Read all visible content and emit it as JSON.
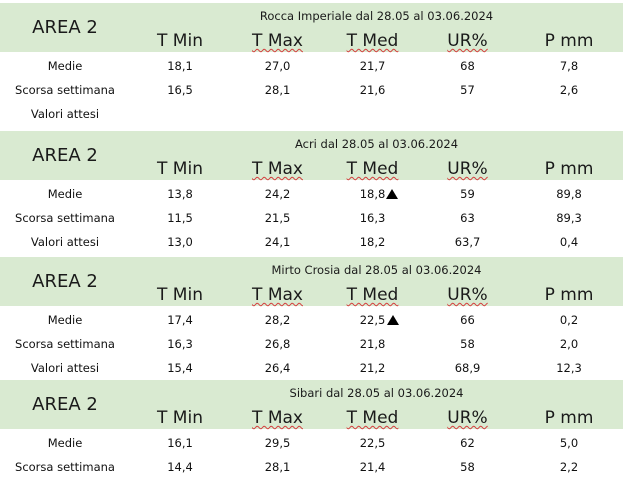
{
  "area_label": "AREA 2",
  "columns": [
    "T Min",
    "T Max",
    "T Med",
    "UR%",
    "P mm"
  ],
  "blocks": [
    {
      "title": "Rocca Imperiale  dal 28.05 al 03.06.2024",
      "rows": [
        {
          "label": "Medie",
          "values": [
            "18,1",
            "27,0",
            "21,7",
            "68",
            "7,8"
          ],
          "arrow": false
        },
        {
          "label": "Scorsa settimana",
          "values": [
            "16,5",
            "28,1",
            "21,6",
            "57",
            "2,6"
          ],
          "arrow": false
        },
        {
          "label": "Valori attesi",
          "values": [
            "",
            "",
            "",
            "",
            ""
          ],
          "arrow": false
        }
      ]
    },
    {
      "title": "Acri dal 28.05 al 03.06.2024",
      "rows": [
        {
          "label": "Medie",
          "values": [
            "13,8",
            "24,2",
            "18,8",
            "59",
            "89,8"
          ],
          "arrow": true
        },
        {
          "label": "Scorsa settimana",
          "values": [
            "11,5",
            "21,5",
            "16,3",
            "63",
            "89,3"
          ],
          "arrow": false
        },
        {
          "label": "Valori attesi",
          "values": [
            "13,0",
            "24,1",
            "18,2",
            "63,7",
            "0,4"
          ],
          "arrow": false
        }
      ]
    },
    {
      "title": "Mirto Crosia dal 28.05 al 03.06.2024",
      "rows": [
        {
          "label": "Medie",
          "values": [
            "17,4",
            "28,2",
            "22,5",
            "66",
            "0,2"
          ],
          "arrow": true
        },
        {
          "label": "Scorsa settimana",
          "values": [
            "16,3",
            "26,8",
            "21,8",
            "58",
            "2,0"
          ],
          "arrow": false
        },
        {
          "label": "Valori attesi",
          "values": [
            "15,4",
            "26,4",
            "21,2",
            "68,9",
            "12,3"
          ],
          "arrow": false
        }
      ]
    },
    {
      "title": "Sibari dal 28.05 al 03.06.2024",
      "rows": [
        {
          "label": "Medie",
          "values": [
            "16,1",
            "29,5",
            "22,5",
            "62",
            "5,0"
          ],
          "arrow": false
        },
        {
          "label": "Scorsa settimana",
          "values": [
            "14,4",
            "28,1",
            "21,4",
            "58",
            "2,2"
          ],
          "arrow": false
        }
      ]
    }
  ],
  "colors": {
    "header_bg": "#d9ead1",
    "spellcheck_underline": "#d43c3c"
  },
  "icons": {
    "trend": "up-triangle-icon"
  }
}
